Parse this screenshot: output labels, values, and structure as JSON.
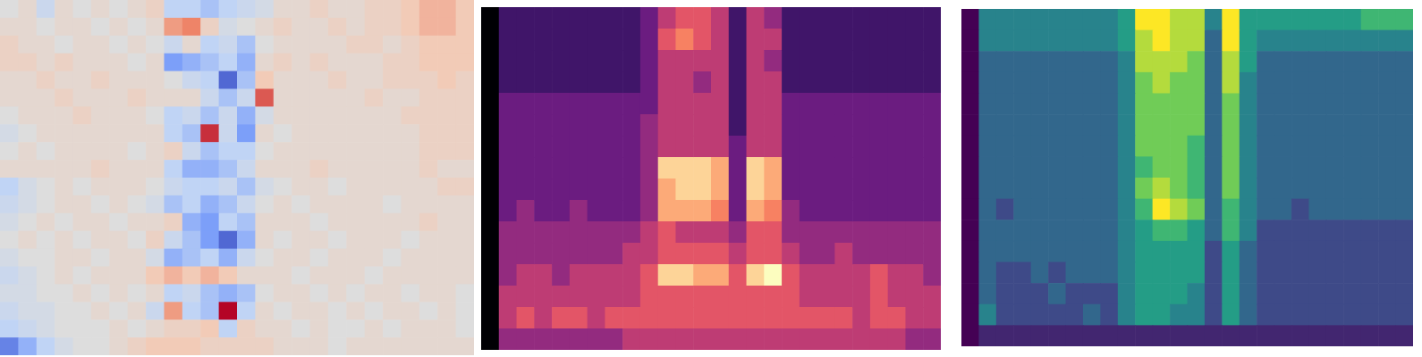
{
  "chart_data": [
    {
      "type": "heatmap",
      "color": "coolwarm",
      "tick_labels": false,
      "cells": [
        [
          0,
          1,
          -2,
          1,
          0,
          1,
          0,
          1,
          2,
          -3,
          -3,
          -4,
          -3,
          -2,
          -1,
          1,
          1,
          2,
          1,
          1,
          2,
          2,
          3,
          4,
          4,
          3
        ],
        [
          1,
          1,
          0,
          1,
          1,
          0,
          1,
          0,
          1,
          5,
          6,
          2,
          -1,
          0,
          1,
          2,
          1,
          1,
          2,
          1,
          2,
          2,
          3,
          4,
          4,
          3
        ],
        [
          2,
          1,
          1,
          0,
          1,
          1,
          0,
          1,
          0,
          -2,
          1,
          -3,
          -2,
          -4,
          0,
          1,
          1,
          1,
          1,
          2,
          2,
          1,
          2,
          3,
          3,
          3
        ],
        [
          2,
          2,
          1,
          2,
          1,
          1,
          1,
          0,
          1,
          -6,
          -5,
          -4,
          -3,
          -5,
          1,
          2,
          1,
          2,
          1,
          1,
          1,
          2,
          2,
          3,
          3,
          3
        ],
        [
          1,
          1,
          2,
          1,
          1,
          2,
          1,
          1,
          1,
          0,
          -2,
          -3,
          -8,
          -4,
          3,
          1,
          1,
          1,
          2,
          1,
          1,
          2,
          2,
          2,
          3,
          2
        ],
        [
          1,
          1,
          1,
          2,
          1,
          1,
          1,
          2,
          1,
          1,
          1,
          -2,
          -4,
          -2,
          7,
          1,
          1,
          1,
          1,
          1,
          2,
          1,
          1,
          2,
          2,
          2
        ],
        [
          0,
          1,
          1,
          1,
          2,
          1,
          1,
          1,
          0,
          -3,
          -2,
          -4,
          -2,
          -5,
          -1,
          1,
          1,
          1,
          1,
          1,
          1,
          1,
          2,
          2,
          2,
          2
        ],
        [
          -1,
          0,
          1,
          1,
          1,
          1,
          1,
          1,
          1,
          -3,
          -4,
          8,
          -2,
          -6,
          1,
          0,
          1,
          1,
          1,
          1,
          1,
          1,
          1,
          2,
          2,
          2
        ],
        [
          0,
          1,
          0,
          1,
          1,
          1,
          1,
          0,
          1,
          2,
          -2,
          -4,
          -3,
          -3,
          0,
          1,
          1,
          1,
          1,
          1,
          1,
          1,
          1,
          2,
          2,
          2
        ],
        [
          1,
          1,
          1,
          1,
          1,
          2,
          1,
          1,
          1,
          -3,
          -5,
          -5,
          -4,
          -2,
          1,
          1,
          1,
          2,
          1,
          1,
          1,
          1,
          1,
          2,
          1,
          1
        ],
        [
          -3,
          -1,
          0,
          1,
          0,
          1,
          1,
          1,
          0,
          -2,
          -3,
          -3,
          -2,
          -4,
          -1,
          0,
          1,
          1,
          0,
          1,
          1,
          1,
          1,
          1,
          2,
          2
        ],
        [
          -2,
          -1,
          0,
          1,
          1,
          0,
          1,
          0,
          -1,
          -4,
          -3,
          -5,
          -4,
          -2,
          0,
          1,
          0,
          1,
          1,
          1,
          1,
          0,
          1,
          1,
          1,
          1
        ],
        [
          -1,
          0,
          1,
          0,
          1,
          1,
          0,
          1,
          1,
          2,
          -5,
          -6,
          -3,
          -4,
          1,
          1,
          1,
          0,
          1,
          1,
          1,
          1,
          1,
          2,
          1,
          1
        ],
        [
          0,
          1,
          0,
          1,
          0,
          1,
          1,
          0,
          2,
          -2,
          -4,
          -6,
          -8,
          -5,
          1,
          0,
          1,
          1,
          0,
          1,
          1,
          1,
          0,
          1,
          1,
          1
        ],
        [
          -1,
          0,
          0,
          1,
          1,
          0,
          1,
          1,
          -1,
          -5,
          -4,
          -3,
          -5,
          -2,
          0,
          1,
          1,
          0,
          1,
          1,
          1,
          0,
          1,
          1,
          1,
          1
        ],
        [
          -2,
          -1,
          0,
          1,
          0,
          1,
          1,
          1,
          3,
          4,
          3,
          4,
          3,
          1,
          1,
          1,
          0,
          1,
          1,
          1,
          0,
          1,
          1,
          1,
          1,
          1
        ],
        [
          -1,
          -1,
          0,
          0,
          1,
          0,
          1,
          0,
          1,
          -3,
          -2,
          -4,
          -5,
          -4,
          0,
          1,
          1,
          0,
          1,
          0,
          1,
          1,
          0,
          1,
          1,
          0
        ],
        [
          -2,
          -1,
          -1,
          0,
          0,
          1,
          0,
          1,
          -2,
          5,
          -3,
          -4,
          9,
          -3,
          1,
          0,
          1,
          1,
          0,
          1,
          0,
          1,
          1,
          0,
          1,
          0
        ],
        [
          -3,
          -2,
          -1,
          0,
          0,
          0,
          1,
          0,
          1,
          2,
          2,
          3,
          -3,
          2,
          1,
          1,
          0,
          1,
          0,
          0,
          1,
          0,
          1,
          1,
          1,
          0
        ],
        [
          -7,
          -5,
          -3,
          -1,
          0,
          0,
          1,
          2,
          3,
          3,
          3,
          2,
          2,
          2,
          2,
          1,
          1,
          1,
          0,
          1,
          1,
          1,
          1,
          1,
          1,
          1
        ]
      ]
    },
    {
      "type": "heatmap",
      "color": "magma",
      "tick_labels": false,
      "cells": [
        [
          0,
          2,
          2,
          2,
          2,
          2,
          2,
          2,
          2,
          3,
          5,
          6,
          6,
          5,
          2,
          5,
          4,
          2,
          2,
          2,
          2,
          2,
          2,
          2,
          2,
          2
        ],
        [
          0,
          2,
          2,
          2,
          2,
          2,
          2,
          2,
          2,
          3,
          6,
          7,
          6,
          5,
          2,
          5,
          5,
          2,
          2,
          2,
          2,
          2,
          2,
          2,
          2,
          2
        ],
        [
          0,
          2,
          2,
          2,
          2,
          2,
          2,
          2,
          2,
          3,
          5,
          5,
          5,
          5,
          2,
          5,
          4,
          2,
          2,
          2,
          2,
          2,
          2,
          2,
          2,
          2
        ],
        [
          0,
          2,
          2,
          2,
          2,
          2,
          2,
          2,
          2,
          3,
          5,
          5,
          4,
          5,
          2,
          5,
          5,
          2,
          2,
          2,
          2,
          2,
          2,
          2,
          2,
          2
        ],
        [
          0,
          3,
          3,
          3,
          3,
          3,
          3,
          3,
          3,
          3,
          5,
          5,
          5,
          5,
          2,
          5,
          5,
          3,
          3,
          3,
          3,
          3,
          3,
          3,
          3,
          3
        ],
        [
          0,
          3,
          3,
          3,
          3,
          3,
          3,
          3,
          3,
          4,
          5,
          5,
          5,
          5,
          2,
          5,
          5,
          3,
          3,
          3,
          3,
          3,
          3,
          3,
          3,
          3
        ],
        [
          0,
          3,
          3,
          3,
          3,
          3,
          3,
          3,
          3,
          4,
          5,
          5,
          5,
          5,
          3,
          5,
          5,
          3,
          3,
          3,
          3,
          3,
          3,
          3,
          3,
          3
        ],
        [
          0,
          3,
          3,
          3,
          3,
          3,
          3,
          3,
          3,
          4,
          9,
          9,
          9,
          8,
          3,
          9,
          8,
          3,
          3,
          3,
          3,
          3,
          3,
          3,
          3,
          3
        ],
        [
          0,
          3,
          3,
          3,
          3,
          3,
          3,
          3,
          3,
          4,
          8,
          9,
          9,
          8,
          3,
          9,
          8,
          3,
          3,
          3,
          3,
          3,
          3,
          3,
          3,
          3
        ],
        [
          0,
          3,
          4,
          3,
          3,
          4,
          3,
          3,
          3,
          4,
          8,
          8,
          8,
          7,
          3,
          8,
          7,
          4,
          3,
          3,
          3,
          3,
          3,
          3,
          3,
          3
        ],
        [
          0,
          4,
          4,
          4,
          4,
          4,
          4,
          4,
          4,
          5,
          6,
          5,
          5,
          5,
          4,
          6,
          6,
          4,
          4,
          4,
          4,
          4,
          4,
          4,
          4,
          4
        ],
        [
          0,
          4,
          4,
          4,
          4,
          4,
          4,
          4,
          5,
          5,
          6,
          6,
          6,
          6,
          5,
          6,
          6,
          5,
          4,
          4,
          5,
          4,
          4,
          4,
          4,
          4
        ],
        [
          0,
          4,
          5,
          5,
          4,
          5,
          5,
          5,
          5,
          6,
          9,
          9,
          8,
          8,
          6,
          9,
          10,
          6,
          5,
          5,
          5,
          5,
          6,
          5,
          5,
          4
        ],
        [
          0,
          5,
          5,
          5,
          5,
          5,
          5,
          5,
          5,
          6,
          6,
          6,
          6,
          6,
          6,
          6,
          6,
          6,
          5,
          5,
          5,
          5,
          6,
          5,
          5,
          5
        ],
        [
          0,
          5,
          6,
          5,
          6,
          6,
          5,
          6,
          6,
          6,
          6,
          6,
          6,
          6,
          6,
          6,
          6,
          6,
          6,
          6,
          6,
          5,
          6,
          6,
          5,
          5
        ],
        [
          0,
          4,
          4,
          4,
          4,
          4,
          4,
          4,
          5,
          5,
          5,
          5,
          5,
          5,
          5,
          5,
          5,
          5,
          5,
          5,
          5,
          5,
          5,
          5,
          4,
          4
        ]
      ]
    },
    {
      "type": "heatmap",
      "color": "viridis",
      "tick_labels": false,
      "cells": [
        [
          0,
          4,
          4,
          4,
          4,
          4,
          4,
          4,
          4,
          5,
          9,
          9,
          8,
          8,
          4,
          9,
          5,
          5,
          5,
          5,
          5,
          5,
          5,
          6,
          6,
          6
        ],
        [
          0,
          4,
          4,
          4,
          4,
          4,
          4,
          4,
          4,
          5,
          8,
          9,
          8,
          8,
          3,
          9,
          5,
          4,
          4,
          4,
          4,
          4,
          4,
          4,
          4,
          4
        ],
        [
          0,
          3,
          3,
          3,
          3,
          3,
          3,
          3,
          3,
          4,
          8,
          8,
          8,
          7,
          3,
          8,
          5,
          3,
          3,
          3,
          3,
          3,
          3,
          3,
          3,
          3
        ],
        [
          0,
          3,
          3,
          3,
          3,
          3,
          3,
          3,
          3,
          4,
          7,
          8,
          7,
          7,
          3,
          8,
          4,
          3,
          3,
          3,
          3,
          3,
          3,
          3,
          3,
          3
        ],
        [
          0,
          3,
          3,
          3,
          3,
          3,
          3,
          3,
          3,
          4,
          7,
          7,
          7,
          7,
          3,
          7,
          4,
          3,
          3,
          3,
          3,
          3,
          3,
          3,
          3,
          3
        ],
        [
          0,
          3,
          3,
          3,
          3,
          3,
          3,
          3,
          3,
          4,
          7,
          7,
          7,
          7,
          3,
          7,
          4,
          3,
          3,
          3,
          3,
          3,
          3,
          3,
          3,
          3
        ],
        [
          0,
          3,
          3,
          3,
          3,
          3,
          3,
          3,
          3,
          4,
          7,
          7,
          7,
          6,
          3,
          7,
          4,
          3,
          3,
          3,
          3,
          3,
          3,
          3,
          3,
          3
        ],
        [
          0,
          3,
          3,
          3,
          3,
          3,
          3,
          3,
          3,
          4,
          6,
          7,
          7,
          6,
          3,
          7,
          4,
          3,
          3,
          3,
          3,
          3,
          3,
          3,
          3,
          3
        ],
        [
          0,
          3,
          3,
          3,
          3,
          3,
          3,
          3,
          3,
          4,
          7,
          8,
          7,
          6,
          3,
          7,
          4,
          3,
          3,
          3,
          3,
          3,
          3,
          3,
          3,
          3
        ],
        [
          0,
          3,
          2,
          3,
          3,
          3,
          3,
          3,
          3,
          4,
          6,
          9,
          8,
          7,
          3,
          6,
          4,
          3,
          3,
          2,
          3,
          3,
          3,
          3,
          3,
          3
        ],
        [
          0,
          3,
          3,
          3,
          3,
          3,
          3,
          3,
          3,
          4,
          5,
          6,
          6,
          5,
          3,
          6,
          4,
          2,
          2,
          2,
          2,
          2,
          2,
          2,
          2,
          2
        ],
        [
          0,
          3,
          3,
          3,
          3,
          3,
          3,
          3,
          3,
          4,
          5,
          5,
          5,
          5,
          2,
          5,
          3,
          2,
          2,
          2,
          2,
          2,
          2,
          2,
          2,
          2
        ],
        [
          0,
          3,
          2,
          2,
          3,
          2,
          3,
          3,
          3,
          4,
          5,
          5,
          5,
          5,
          2,
          5,
          3,
          2,
          2,
          2,
          2,
          2,
          2,
          2,
          2,
          2
        ],
        [
          0,
          3,
          2,
          2,
          2,
          3,
          2,
          2,
          2,
          4,
          5,
          5,
          5,
          4,
          2,
          5,
          3,
          2,
          2,
          2,
          2,
          2,
          2,
          2,
          2,
          2
        ],
        [
          0,
          4,
          2,
          2,
          2,
          2,
          2,
          3,
          2,
          4,
          5,
          5,
          4,
          4,
          2,
          5,
          3,
          2,
          2,
          2,
          2,
          2,
          2,
          2,
          2,
          2
        ],
        [
          0,
          1,
          1,
          1,
          1,
          1,
          1,
          1,
          1,
          1,
          1,
          1,
          1,
          1,
          1,
          1,
          1,
          1,
          1,
          1,
          1,
          1,
          1,
          1,
          1,
          1
        ]
      ]
    }
  ]
}
